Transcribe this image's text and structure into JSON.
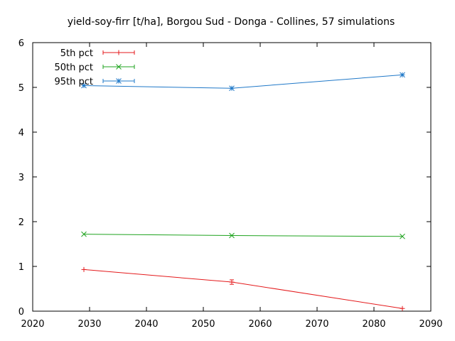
{
  "chart_data": {
    "type": "line",
    "title": "yield-soy-firr [t/ha], Borgou Sud - Donga - Collines, 57 simulations",
    "xlabel": "",
    "ylabel": "",
    "xlim": [
      2020,
      2090
    ],
    "ylim": [
      0,
      6
    ],
    "xticks": [
      2020,
      2030,
      2040,
      2050,
      2060,
      2070,
      2080,
      2090
    ],
    "yticks": [
      0,
      1,
      2,
      3,
      4,
      5,
      6
    ],
    "grid": false,
    "legend_position": "top-left",
    "x": [
      2029,
      2055,
      2085
    ],
    "series": [
      {
        "name": "5th pct",
        "color": "#e41a1c",
        "marker": "plus",
        "values": [
          0.93,
          0.65,
          0.06
        ],
        "error": [
          0.0,
          0.05,
          0.0
        ]
      },
      {
        "name": "50th pct",
        "color": "#1fa31f",
        "marker": "cross",
        "values": [
          1.72,
          1.69,
          1.67
        ],
        "error": [
          0.0,
          0.0,
          0.0
        ]
      },
      {
        "name": "95th pct",
        "color": "#1f78c8",
        "marker": "star",
        "values": [
          5.04,
          4.98,
          5.28
        ],
        "error": [
          0.0,
          0.0,
          0.0
        ]
      }
    ]
  }
}
